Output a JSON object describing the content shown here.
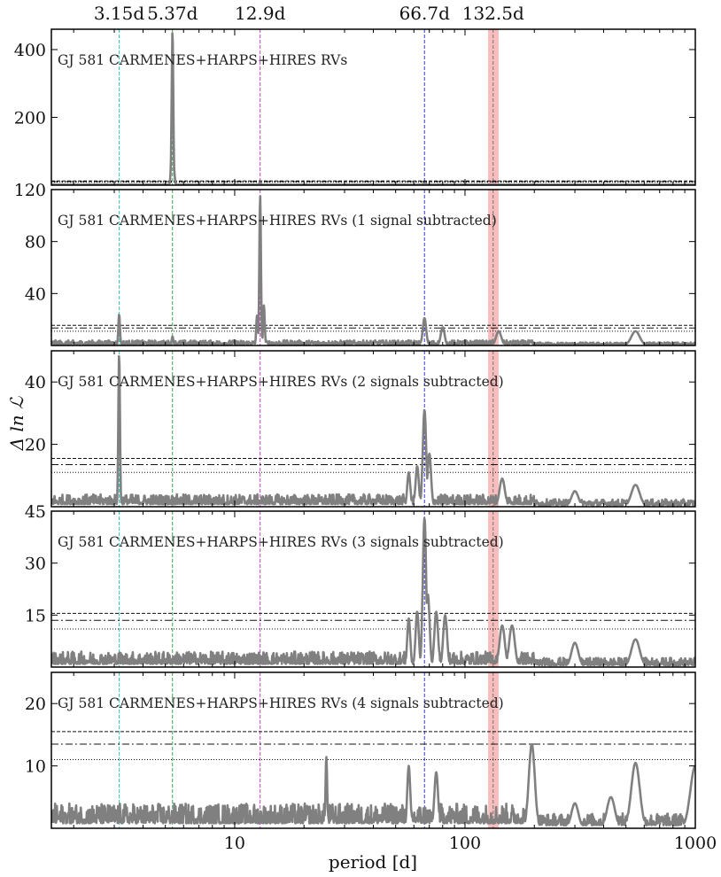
{
  "chart_data": {
    "type": "line",
    "xlabel": "period [d]",
    "ylabel": "Δ ln ℒ",
    "xscale": "log",
    "xlim": [
      1.6,
      1000
    ],
    "xticks": [
      {
        "value": 10,
        "label": "10"
      },
      {
        "value": 100,
        "label": "100"
      },
      {
        "value": 1000,
        "label": "1000"
      }
    ],
    "reference_periods": [
      {
        "label": "3.15d",
        "value": 3.15,
        "color": "#2ad4c4"
      },
      {
        "label": "5.37d",
        "value": 5.37,
        "color": "#3aa64a"
      },
      {
        "label": "12.9d",
        "value": 12.9,
        "color": "#d43ad4"
      },
      {
        "label": "66.7d",
        "value": 66.7,
        "color": "#3a3ad8"
      },
      {
        "label": "132.5d",
        "value": 132.5,
        "color": "#777777"
      }
    ],
    "highlight_band": {
      "from": 126,
      "to": 140,
      "color": "#f6a8a8"
    },
    "colors": {
      "curve": "#808080",
      "thresholds": "#111111"
    },
    "grid": false,
    "panels": [
      {
        "title": "GJ 581 CARMENES+HARPS+HIRES RVs",
        "ylim": [
          0,
          460
        ],
        "yticks": [
          200,
          400
        ],
        "thresholds": [
          12.5,
          10.5,
          8.5
        ],
        "peaks": [
          {
            "period": 5.37,
            "height": 455
          },
          {
            "period": 5.31,
            "height": 60
          },
          {
            "period": 5.45,
            "height": 40
          },
          {
            "period": 12.9,
            "height": 8
          },
          {
            "period": 66.7,
            "height": 5
          }
        ],
        "noise_level": 2
      },
      {
        "title": "GJ 581 CARMENES+HARPS+HIRES RVs (1 signal subtracted)",
        "ylim": [
          0,
          120
        ],
        "yticks": [
          40,
          80,
          120
        ],
        "thresholds": [
          15.5,
          13.5,
          11
        ],
        "peaks": [
          {
            "period": 12.9,
            "height": 115
          },
          {
            "period": 13.4,
            "height": 31
          },
          {
            "period": 12.5,
            "height": 23
          },
          {
            "period": 3.15,
            "height": 24
          },
          {
            "period": 66.7,
            "height": 21
          },
          {
            "period": 5.37,
            "height": 7
          },
          {
            "period": 80,
            "height": 14
          },
          {
            "period": 140,
            "height": 11
          },
          {
            "period": 550,
            "height": 11
          }
        ],
        "noise_level": 4
      },
      {
        "title": "GJ 581 CARMENES+HARPS+HIRES RVs (2 signals subtracted)",
        "ylim": [
          0,
          50
        ],
        "yticks": [
          20,
          40
        ],
        "thresholds": [
          15.5,
          13.5,
          11
        ],
        "peaks": [
          {
            "period": 3.15,
            "height": 49
          },
          {
            "period": 66.7,
            "height": 31
          },
          {
            "period": 70,
            "height": 17
          },
          {
            "period": 62,
            "height": 13
          },
          {
            "period": 57,
            "height": 11
          },
          {
            "period": 145,
            "height": 9
          },
          {
            "period": 550,
            "height": 7
          },
          {
            "period": 300,
            "height": 5
          }
        ],
        "noise_level": 4
      },
      {
        "title": "GJ 581 CARMENES+HARPS+HIRES RVs (3 signals subtracted)",
        "ylim": [
          0,
          45
        ],
        "yticks": [
          15,
          30,
          45
        ],
        "thresholds": [
          15.5,
          13.5,
          11
        ],
        "peaks": [
          {
            "period": 66.7,
            "height": 43
          },
          {
            "period": 69,
            "height": 21
          },
          {
            "period": 62,
            "height": 16
          },
          {
            "period": 75,
            "height": 16
          },
          {
            "period": 82,
            "height": 15
          },
          {
            "period": 57,
            "height": 14
          },
          {
            "period": 145,
            "height": 12
          },
          {
            "period": 160,
            "height": 12
          },
          {
            "period": 300,
            "height": 7
          },
          {
            "period": 550,
            "height": 8
          }
        ],
        "noise_level": 4.5
      },
      {
        "title": "GJ 581 CARMENES+HARPS+HIRES RVs (4 signals subtracted)",
        "ylim": [
          0,
          25
        ],
        "yticks": [
          10,
          20
        ],
        "thresholds": [
          15.5,
          13.5,
          11
        ],
        "peaks": [
          {
            "period": 195,
            "height": 13.5
          },
          {
            "period": 25,
            "height": 11.5
          },
          {
            "period": 550,
            "height": 10.5
          },
          {
            "period": 1000,
            "height": 10
          },
          {
            "period": 57,
            "height": 10
          },
          {
            "period": 75,
            "height": 9
          },
          {
            "period": 300,
            "height": 4
          },
          {
            "period": 430,
            "height": 5
          }
        ],
        "noise_level": 4
      }
    ]
  }
}
